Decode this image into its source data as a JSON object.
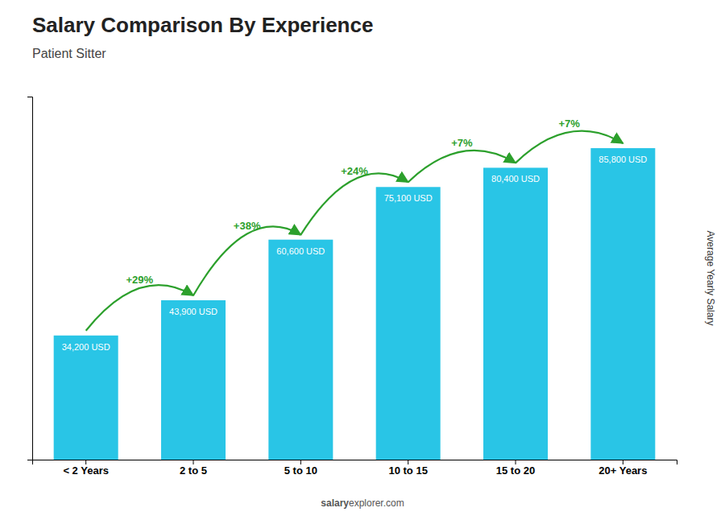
{
  "chart_data": {
    "type": "bar",
    "title": "Salary Comparison By Experience",
    "subtitle": "Patient Sitter",
    "categories": [
      "< 2 Years",
      "2 to 5",
      "5 to 10",
      "10 to 15",
      "15 to 20",
      "20+ Years"
    ],
    "values": [
      34200,
      43900,
      60600,
      75100,
      80400,
      85800
    ],
    "value_labels": [
      "34,200 USD",
      "43,900 USD",
      "60,600 USD",
      "75,100 USD",
      "80,400 USD",
      "85,800 USD"
    ],
    "data_labels": true,
    "color": "#29c5e6",
    "y_label": "Average Yearly Salary",
    "ylim": [
      0,
      100000
    ],
    "tick_labels": "x",
    "grid": false,
    "annotations": [
      "+29%",
      "+38%",
      "+24%",
      "+7%",
      "+7%"
    ],
    "watermark": [
      "salary",
      "explorer.com"
    ]
  }
}
